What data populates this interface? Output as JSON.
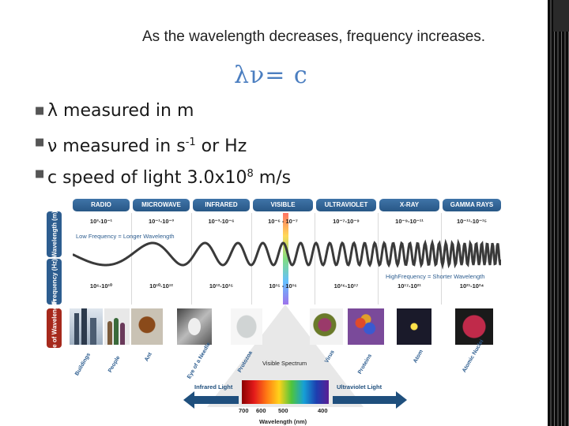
{
  "slide": {
    "subtitle": "As the wavelength decreases, frequency increases.",
    "equation": "λν= c",
    "bullets": [
      {
        "lead": "λ measured in m",
        "sup": "",
        "tail": ""
      },
      {
        "lead": "ν measured in s",
        "sup": "-1",
        "tail": " or Hz"
      },
      {
        "lead": "c speed of light 3.0x10",
        "sup": "8",
        "tail": " m/s"
      }
    ]
  },
  "figure": {
    "axis_tabs": {
      "wavelength": "Wavelength (m)",
      "frequency": "Frequency (Hz)",
      "size": "Size of Wavelength"
    },
    "bands": [
      {
        "name": "RADIO",
        "wavelength": "10³-10⁻¹",
        "frequency": "10⁶-10¹⁰"
      },
      {
        "name": "MICROWAVE",
        "wavelength": "10⁻¹-10⁻³",
        "frequency": "10¹⁰-10¹²"
      },
      {
        "name": "INFRARED",
        "wavelength": "10⁻³-10⁻⁶",
        "frequency": "10¹²-10¹⁵"
      },
      {
        "name": "VISIBLE",
        "wavelength": "10⁻⁶ - 10⁻⁷",
        "frequency": "10¹⁵ - 10¹⁶"
      },
      {
        "name": "ULTRAVIOLET",
        "wavelength": "10⁻⁷-10⁻⁹",
        "frequency": "10¹⁶-10¹⁷"
      },
      {
        "name": "X-RAY",
        "wavelength": "10⁻⁹-10⁻¹¹",
        "frequency": "10¹⁷-10²¹"
      },
      {
        "name": "GAMMA RAYS",
        "wavelength": "10⁻¹¹-10⁻¹⁵",
        "frequency": "10²¹-10²⁴"
      }
    ],
    "notes": {
      "low": "Low Frequency = Longer Wavelength",
      "high": "HighFrequency = Shorter Wavelength"
    },
    "size_labels": [
      "Buildings",
      "People",
      "Ant",
      "Eye of a Needle",
      "Protozoa",
      "Virus",
      "Proteins",
      "Atom",
      "Atomic Nuclei"
    ],
    "visible_spectrum": "Visible Spectrum",
    "infrared_light": "Infrared Light",
    "ultraviolet_light": "Ultraviolet Light",
    "nm_ticks": [
      "700",
      "600",
      "500",
      "400"
    ],
    "nm_axis_title": "Wavelength (nm)"
  },
  "colors": {
    "equation": "#4b7ec0",
    "band_header": "#2d5d8f",
    "size_tab": "#a6291c"
  }
}
